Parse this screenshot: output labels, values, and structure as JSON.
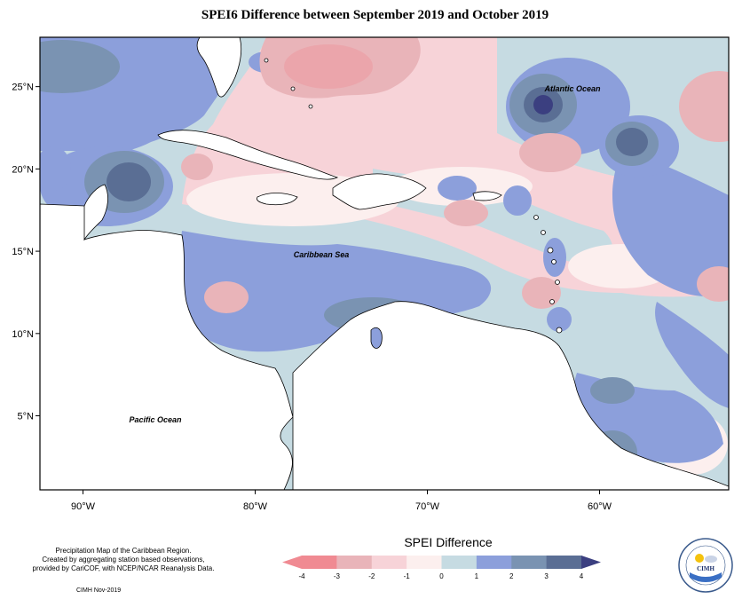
{
  "title": "SPEI6 Difference between September 2019 and October 2019",
  "map": {
    "labels": {
      "atlantic": "Atlantic Ocean",
      "caribbean": "Caribbean Sea",
      "pacific": "Pacific Ocean"
    },
    "lat_ticks": [
      "25°N",
      "20°N",
      "15°N",
      "10°N",
      "5°N"
    ],
    "lon_ticks": [
      "90°W",
      "80°W",
      "70°W",
      "60°W"
    ],
    "lon_range": [
      -92.5,
      -52.5
    ],
    "lat_range": [
      0.5,
      28.0
    ]
  },
  "legend": {
    "title": "SPEI Difference",
    "ticks": [
      "-4",
      "-3",
      "-2",
      "-1",
      "0",
      "1",
      "2",
      "3",
      "4"
    ],
    "colors": [
      "#f08a92",
      "#e9b4b9",
      "#f7d3d8",
      "#fcefee",
      "#c6dbe2",
      "#8c9fdb",
      "#7a93b2",
      "#5a6e94",
      "#3b3f80"
    ]
  },
  "palette": {
    "strong_dry": "#f08a92",
    "dry": "#e9b4b9",
    "light_dry": "#f7d3d8",
    "very_light_dry": "#fcefee",
    "neutral": "#c6dbe2",
    "wet": "#8c9fdb",
    "wetter": "#7a93b2",
    "very_wet": "#5a6e94",
    "extreme_wet": "#3b3f80"
  },
  "credit": {
    "line1": "Precipitation Map of the Caribbean Region.",
    "line2": "Created by aggregating station based observations,",
    "line3": "provided by CariCOF, with NCEP/NCAR Reanalysis Data.",
    "date": "CIMH Nov-2019"
  },
  "logo": {
    "text": "CIMH"
  }
}
